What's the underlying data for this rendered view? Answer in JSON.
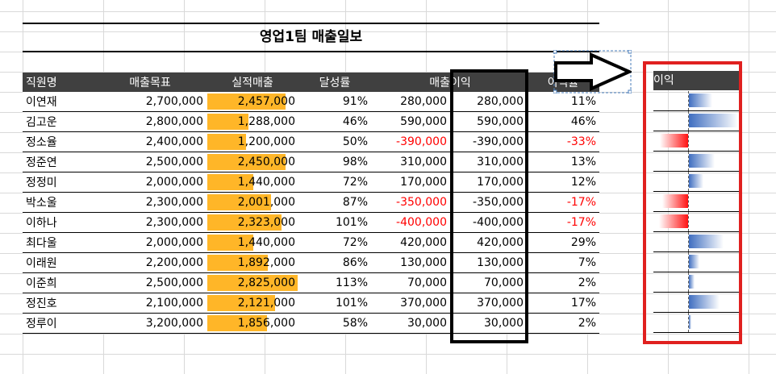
{
  "report": {
    "title": "영업1팀 매출일보",
    "columns": [
      "직원명",
      "매출목표",
      "실적매출",
      "달성률",
      "매출이익",
      "",
      "이익률"
    ]
  },
  "rows": [
    {
      "name": "이연재",
      "target": "2,700,000",
      "sales": "2,457,000",
      "rate": "91%",
      "profit": "280,000",
      "profit2": "280,000",
      "margin": "11%"
    },
    {
      "name": "김고운",
      "target": "2,800,000",
      "sales": "1,288,000",
      "rate": "46%",
      "profit": "590,000",
      "profit2": "590,000",
      "margin": "46%"
    },
    {
      "name": "정소율",
      "target": "2,400,000",
      "sales": "1,200,000",
      "rate": "50%",
      "profit": "-390,000",
      "profit2": "-390,000",
      "margin": "-33%"
    },
    {
      "name": "정준연",
      "target": "2,500,000",
      "sales": "2,450,000",
      "rate": "98%",
      "profit": "310,000",
      "profit2": "310,000",
      "margin": "13%"
    },
    {
      "name": "정정미",
      "target": "2,000,000",
      "sales": "1,440,000",
      "rate": "72%",
      "profit": "170,000",
      "profit2": "170,000",
      "margin": "12%"
    },
    {
      "name": "박소울",
      "target": "2,300,000",
      "sales": "2,001,000",
      "rate": "87%",
      "profit": "-350,000",
      "profit2": "-350,000",
      "margin": "-17%"
    },
    {
      "name": "이하나",
      "target": "2,300,000",
      "sales": "2,323,000",
      "rate": "101%",
      "profit": "-400,000",
      "profit2": "-400,000",
      "margin": "-17%"
    },
    {
      "name": "최다울",
      "target": "2,000,000",
      "sales": "1,440,000",
      "rate": "72%",
      "profit": "420,000",
      "profit2": "420,000",
      "margin": "29%"
    },
    {
      "name": "이래원",
      "target": "2,200,000",
      "sales": "1,892,000",
      "rate": "86%",
      "profit": "130,000",
      "profit2": "130,000",
      "margin": "7%"
    },
    {
      "name": "이준희",
      "target": "2,500,000",
      "sales": "2,825,000",
      "rate": "113%",
      "profit": "70,000",
      "profit2": "70,000",
      "margin": "2%"
    },
    {
      "name": "정진호",
      "target": "2,100,000",
      "sales": "2,121,000",
      "rate": "101%",
      "profit": "370,000",
      "profit2": "370,000",
      "margin": "17%"
    },
    {
      "name": "정루이",
      "target": "3,200,000",
      "sales": "1,856,000",
      "rate": "58%",
      "profit": "30,000",
      "profit2": "30,000",
      "margin": "2%"
    }
  ],
  "sales_bars": [
    2457000,
    1288000,
    1200000,
    2450000,
    1440000,
    2001000,
    2323000,
    1440000,
    1892000,
    2825000,
    2121000,
    1856000
  ],
  "sales_bar_max": 2825000,
  "profit_chart": {
    "header": "이익",
    "values": [
      280000,
      590000,
      -390000,
      310000,
      170000,
      -350000,
      -400000,
      420000,
      130000,
      70000,
      370000,
      30000
    ],
    "max_abs": 590000
  },
  "colors": {
    "header_bg": "#404040",
    "sales_bar": "#ffb628",
    "negative_text": "#ff0000",
    "frame_red": "#e0201f",
    "bar_positive": "#3f6ec0",
    "bar_negative": "#ff1212"
  }
}
